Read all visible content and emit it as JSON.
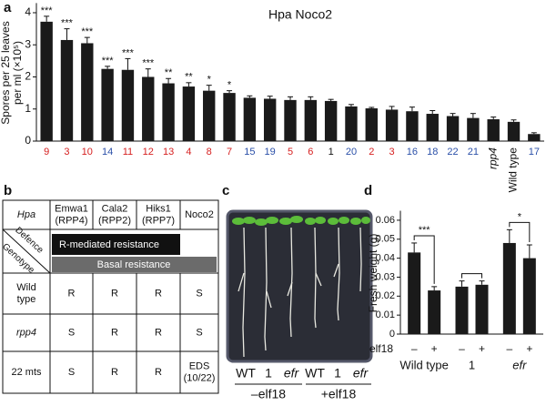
{
  "panel_labels": [
    "a",
    "b",
    "c",
    "d"
  ],
  "chart_data": [
    {
      "type": "bar",
      "title": "Hpa Noco2",
      "ylabel": [
        "Spores per 25 leaves",
        "per ml (×10⁵)"
      ],
      "categories": [
        "9",
        "3",
        "10",
        "14",
        "11",
        "12",
        "13",
        "4",
        "8",
        "7",
        "15",
        "19",
        "5",
        "6",
        "1",
        "20",
        "2",
        "3",
        "16",
        "18",
        "22",
        "21",
        "rpp4",
        "Wild type",
        "17"
      ],
      "category_colors": [
        "#d62020",
        "#d62020",
        "#d62020",
        "#2a4fa8",
        "#d62020",
        "#d62020",
        "#d62020",
        "#d62020",
        "#d62020",
        "#d62020",
        "#2a4fa8",
        "#2a4fa8",
        "#d62020",
        "#d62020",
        "#111111",
        "#2a4fa8",
        "#d62020",
        "#d62020",
        "#2a4fa8",
        "#2a4fa8",
        "#2a4fa8",
        "#2a4fa8",
        "#111111",
        "#111111",
        "#2a4fa8"
      ],
      "values": [
        3.72,
        3.15,
        3.05,
        2.25,
        2.22,
        2.0,
        1.8,
        1.7,
        1.57,
        1.5,
        1.35,
        1.32,
        1.28,
        1.28,
        1.25,
        1.08,
        1.02,
        0.98,
        0.93,
        0.85,
        0.78,
        0.72,
        0.68,
        0.6,
        0.22
      ],
      "errors": [
        0.17,
        0.35,
        0.18,
        0.08,
        0.35,
        0.25,
        0.15,
        0.12,
        0.17,
        0.07,
        0.06,
        0.08,
        0.1,
        0.1,
        0.05,
        0.06,
        0.03,
        0.1,
        0.13,
        0.1,
        0.08,
        0.14,
        0.07,
        0.06,
        0.04
      ],
      "value_annotations": [
        "***",
        "***",
        "***",
        "***",
        "***",
        "***",
        "**",
        "**",
        "*",
        "*",
        null,
        null,
        null,
        null,
        null,
        null,
        null,
        null,
        null,
        null,
        null,
        null,
        null,
        null,
        null
      ],
      "color": "#1a1a1a",
      "ylim": [
        0,
        4.3
      ],
      "yticks": [
        0,
        1,
        2,
        3,
        4
      ]
    },
    {
      "type": "bar",
      "ylabel": "Fresh weight (g)",
      "x_label": "elf18",
      "categories": [
        "–",
        "+",
        "–",
        "+",
        "–",
        "+"
      ],
      "groups": [
        "Wild type",
        "1",
        "efr"
      ],
      "group_annotations": [
        "***",
        null,
        "*"
      ],
      "values": [
        0.043,
        0.023,
        0.025,
        0.026,
        0.048,
        0.04
      ],
      "errors": [
        0.005,
        0.002,
        0.003,
        0.002,
        0.007,
        0.007
      ],
      "color": "#1a1a1a",
      "ylim": [
        0,
        0.065
      ],
      "yticks": [
        0,
        0.01,
        0.02,
        0.03,
        0.04,
        0.05,
        0.06
      ]
    }
  ],
  "table": {
    "header": [
      [
        "Hpa"
      ],
      [
        "Emwa1",
        "(RPP4)"
      ],
      [
        "Cala2",
        "(RPP2)"
      ],
      [
        "Hiks1",
        "(RPP7)"
      ],
      [
        "Noco2"
      ]
    ],
    "corner": [
      "Defence",
      "Genotype"
    ],
    "bars": [
      "R-mediated resistance",
      "Basal resistance"
    ],
    "rows": [
      [
        [
          "Wild",
          "type"
        ],
        [
          "R"
        ],
        [
          "R"
        ],
        [
          "R"
        ],
        [
          "S"
        ]
      ],
      [
        [
          "rpp4"
        ],
        [
          "S"
        ],
        [
          "R"
        ],
        [
          "R"
        ],
        [
          "S"
        ]
      ],
      [
        [
          "22 mts"
        ],
        [
          "S"
        ],
        [
          "R"
        ],
        [
          "R"
        ],
        [
          "EDS",
          "(10/22)"
        ]
      ]
    ]
  },
  "photo": {
    "labels": [
      "WT",
      "1",
      "efr",
      "WT",
      "1",
      "efr"
    ],
    "groups": [
      "–elf18",
      "+elf18"
    ]
  }
}
